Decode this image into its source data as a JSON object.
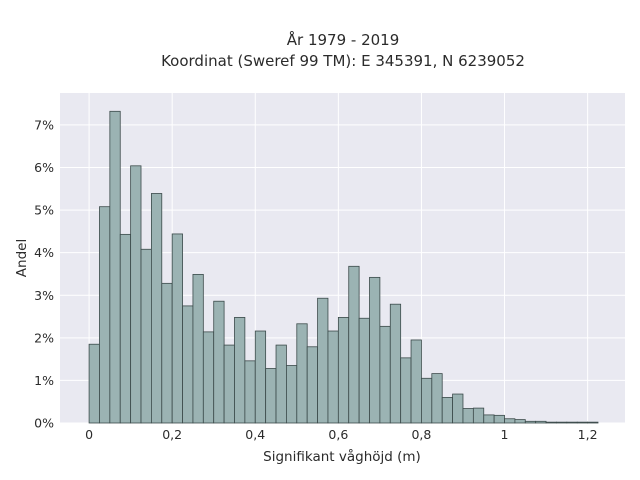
{
  "chart_data": {
    "type": "bar",
    "title_line1": "År 1979 - 2019",
    "title_line2": "Koordinat (Sweref 99 TM): E 345391, N 6239052",
    "xlabel": "Signifikant våghöjd (m)",
    "ylabel": "Andel",
    "xlim": [
      -0.07,
      1.29
    ],
    "ylim": [
      0,
      7.75
    ],
    "bin_width": 0.025,
    "grid": true,
    "x_ticks": [
      {
        "value": 0,
        "label": "0"
      },
      {
        "value": 0.2,
        "label": "0,2"
      },
      {
        "value": 0.4,
        "label": "0,4"
      },
      {
        "value": 0.6,
        "label": "0,6"
      },
      {
        "value": 0.8,
        "label": "0,8"
      },
      {
        "value": 1.0,
        "label": "1"
      },
      {
        "value": 1.2,
        "label": "1,2"
      }
    ],
    "y_ticks": [
      {
        "value": 0,
        "label": "0%"
      },
      {
        "value": 1,
        "label": "1%"
      },
      {
        "value": 2,
        "label": "2%"
      },
      {
        "value": 3,
        "label": "3%"
      },
      {
        "value": 4,
        "label": "4%"
      },
      {
        "value": 5,
        "label": "5%"
      },
      {
        "value": 6,
        "label": "6%"
      },
      {
        "value": 7,
        "label": "7%"
      }
    ],
    "x": [
      0,
      0.025,
      0.05,
      0.075,
      0.1,
      0.125,
      0.15,
      0.175,
      0.2,
      0.225,
      0.25,
      0.275,
      0.3,
      0.325,
      0.35,
      0.375,
      0.4,
      0.425,
      0.45,
      0.475,
      0.5,
      0.525,
      0.55,
      0.575,
      0.6,
      0.625,
      0.65,
      0.675,
      0.7,
      0.725,
      0.75,
      0.775,
      0.8,
      0.825,
      0.85,
      0.875,
      0.9,
      0.925,
      0.95,
      0.975,
      1.0,
      1.025,
      1.05,
      1.075,
      1.1,
      1.125,
      1.15,
      1.175,
      1.2
    ],
    "values": [
      1.85,
      5.08,
      7.32,
      4.43,
      6.04,
      4.08,
      5.39,
      3.28,
      4.44,
      2.75,
      3.49,
      2.14,
      2.86,
      1.83,
      2.48,
      1.46,
      2.16,
      1.28,
      1.83,
      1.35,
      2.33,
      1.79,
      2.93,
      2.16,
      2.48,
      3.68,
      2.46,
      3.42,
      2.27,
      2.79,
      1.53,
      1.95,
      1.05,
      1.16,
      0.6,
      0.68,
      0.34,
      0.35,
      0.19,
      0.18,
      0.1,
      0.08,
      0.04,
      0.04,
      0.02,
      0.02,
      0.02,
      0.02,
      0.02
    ]
  }
}
